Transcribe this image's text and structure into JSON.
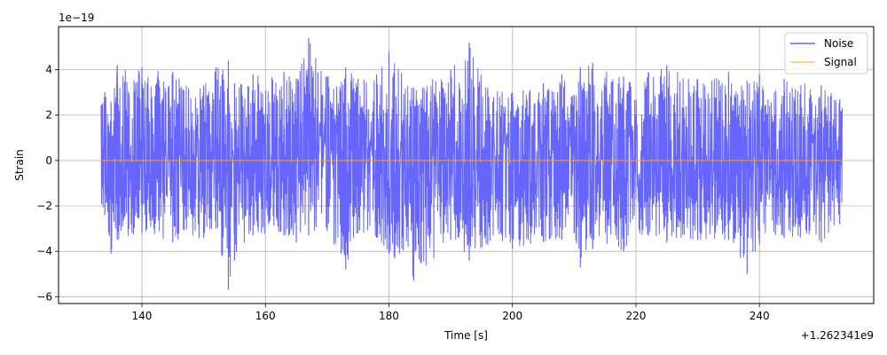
{
  "chart_data": {
    "type": "line",
    "title": "",
    "xlabel": "Time [s]",
    "ylabel": "Strain",
    "x_offset_label": "+1.262341e9",
    "y_scale_label": "1e−19",
    "xlim": [
      126.5,
      258.5
    ],
    "ylim": [
      -6.3,
      5.9
    ],
    "x_ticks": [
      140,
      160,
      180,
      200,
      220,
      240
    ],
    "x_tick_labels": [
      "140",
      "160",
      "180",
      "200",
      "220",
      "240"
    ],
    "y_ticks": [
      -6,
      -4,
      -2,
      0,
      2,
      4
    ],
    "y_tick_labels": [
      "−6",
      "−4",
      "−2",
      "0",
      "2",
      "4"
    ],
    "grid": true,
    "legend_position": "upper right",
    "series": [
      {
        "name": "Noise",
        "color": "#6666ff",
        "x_range": [
          133.4,
          253.4
        ],
        "envelope": {
          "x": [
            134,
            135,
            136,
            140,
            145,
            150,
            152,
            154,
            155,
            158,
            163,
            165,
            167,
            170,
            173,
            175,
            178,
            180,
            184,
            190,
            193,
            196,
            200,
            205,
            208,
            210,
            211,
            213,
            218,
            222,
            225,
            230,
            235,
            238,
            240,
            244,
            250,
            253
          ],
          "max": [
            3.0,
            2.6,
            4.2,
            4.1,
            3.9,
            3.3,
            4.1,
            4.4,
            3.4,
            3.8,
            3.9,
            3.6,
            5.4,
            3.7,
            4.1,
            3.6,
            3.8,
            4.8,
            3.2,
            4.0,
            5.2,
            3.2,
            3.0,
            3.4,
            3.8,
            2.9,
            4.1,
            4.3,
            3.7,
            3.9,
            4.2,
            3.6,
            3.9,
            3.5,
            3.8,
            3.6,
            3.3,
            2.7
          ],
          "min": [
            -2.4,
            -4.1,
            -3.5,
            -3.2,
            -3.6,
            -3.4,
            -3.0,
            -5.7,
            -4.4,
            -3.3,
            -3.3,
            -3.6,
            -3.3,
            -3.1,
            -4.8,
            -3.2,
            -3.4,
            -4.1,
            -5.3,
            -3.5,
            -4.4,
            -3.7,
            -3.9,
            -3.6,
            -3.5,
            -3.2,
            -4.7,
            -3.9,
            -4.0,
            -3.3,
            -3.6,
            -3.5,
            -3.5,
            -5.0,
            -3.7,
            -3.4,
            -3.6,
            -2.8
          ]
        }
      },
      {
        "name": "Signal",
        "color": "#ff9f1c",
        "x": [
          133.4,
          253.4
        ],
        "values": [
          0.0,
          0.0
        ]
      }
    ]
  }
}
